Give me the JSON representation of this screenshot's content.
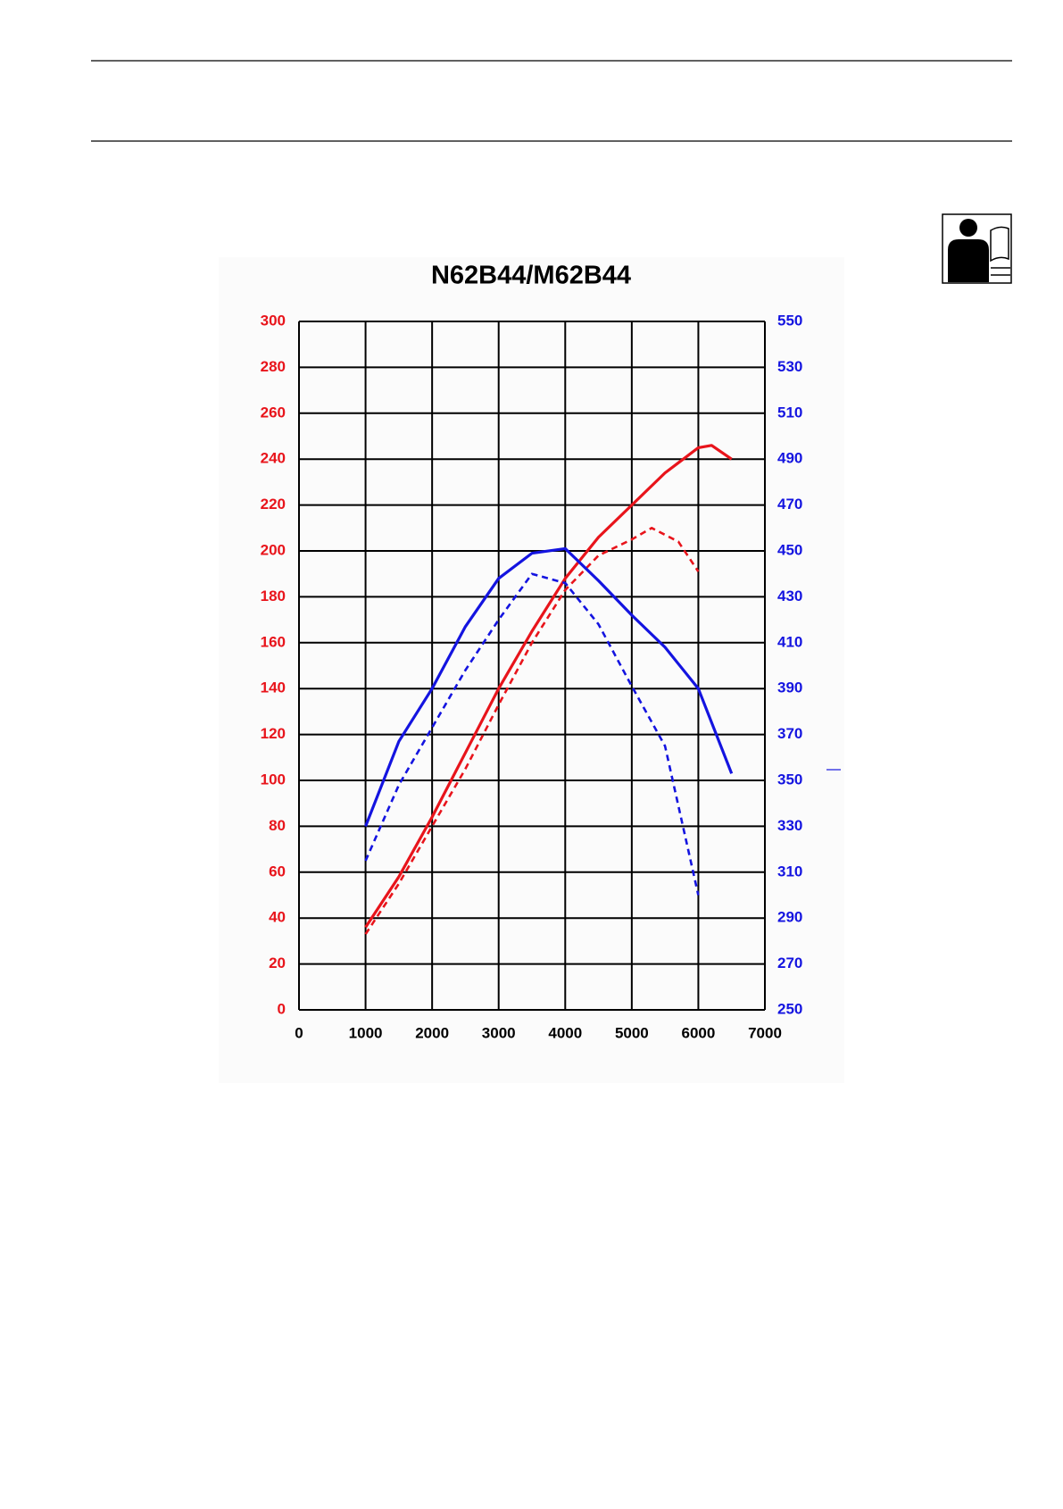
{
  "chart_data": {
    "type": "line",
    "title": "N62B44/M62B44",
    "xlim": [
      0,
      7000
    ],
    "xticks": [
      0,
      1000,
      2000,
      3000,
      4000,
      5000,
      6000,
      7000
    ],
    "ylim": [
      0,
      300
    ],
    "yticks": [
      0,
      20,
      40,
      60,
      80,
      100,
      120,
      140,
      160,
      180,
      200,
      220,
      240,
      260,
      280,
      300
    ],
    "y2lim": [
      250,
      550
    ],
    "y2ticks": [
      250,
      270,
      290,
      310,
      330,
      350,
      370,
      390,
      410,
      430,
      450,
      470,
      490,
      510,
      530,
      550
    ],
    "grid": true,
    "ytick_color": "#e8141b",
    "y2tick_color": "#1414e0",
    "series": [
      {
        "color": "#e8141b",
        "dashed": false,
        "x": [
          1000,
          1500,
          2000,
          2500,
          3000,
          3500,
          4000,
          4500,
          5000,
          5500,
          6000,
          6200,
          6500
        ],
        "values": [
          36,
          58,
          84,
          112,
          140,
          165,
          188,
          206,
          220,
          234,
          245,
          246,
          240
        ]
      },
      {
        "color": "#e8141b",
        "dashed": true,
        "x": [
          1000,
          1500,
          2000,
          2500,
          3000,
          3500,
          4000,
          4500,
          5000,
          5300,
          5700,
          6000
        ],
        "values": [
          33,
          55,
          80,
          105,
          133,
          160,
          183,
          198,
          205,
          210,
          204,
          191
        ]
      },
      {
        "color": "#1414e0",
        "dashed": false,
        "axis": "y2",
        "x": [
          1000,
          1500,
          2000,
          2500,
          3000,
          3500,
          4000,
          4500,
          5000,
          5500,
          6000,
          6500
        ],
        "values": [
          330,
          367,
          390,
          417,
          438,
          449,
          451,
          437,
          422,
          408,
          390,
          353
        ]
      },
      {
        "color": "#1414e0",
        "dashed": true,
        "axis": "y2",
        "x": [
          1000,
          1500,
          2000,
          2500,
          3000,
          3500,
          4000,
          4500,
          5000,
          5500,
          6000
        ],
        "values": [
          315,
          348,
          373,
          398,
          420,
          440,
          436,
          418,
          391,
          365,
          300
        ]
      }
    ]
  }
}
